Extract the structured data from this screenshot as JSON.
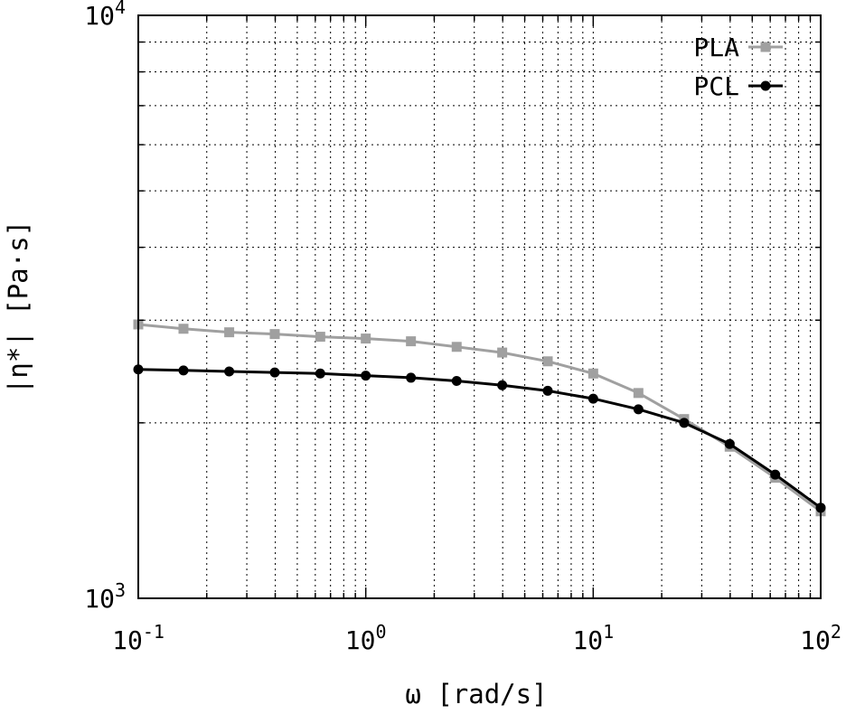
{
  "chart_data": {
    "type": "line",
    "xlabel": "ω [rad/s]",
    "ylabel": "|η*| [Pa·s]",
    "x_scale": "log",
    "y_scale": "log",
    "xlim": [
      0.1,
      100
    ],
    "ylim": [
      1000,
      10000
    ],
    "grid": true,
    "legend_position": "top-right",
    "x_ticks": [
      {
        "base": "10",
        "exp": "-1",
        "value": 0.1
      },
      {
        "base": "10",
        "exp": "0",
        "value": 1
      },
      {
        "base": "10",
        "exp": "1",
        "value": 10
      },
      {
        "base": "10",
        "exp": "2",
        "value": 100
      }
    ],
    "y_ticks": [
      {
        "base": "10",
        "exp": "3",
        "value": 1000
      },
      {
        "base": "10",
        "exp": "4",
        "value": 10000
      }
    ],
    "series": [
      {
        "name": "PLA",
        "color": "#a0a0a0",
        "marker": "square",
        "x": [
          0.1,
          0.158,
          0.251,
          0.398,
          0.631,
          1.0,
          1.58,
          2.51,
          3.98,
          6.31,
          10.0,
          15.8,
          25.1,
          39.8,
          63.1,
          100.0
        ],
        "y": [
          2950,
          2900,
          2860,
          2840,
          2810,
          2790,
          2760,
          2700,
          2640,
          2550,
          2430,
          2250,
          2030,
          1820,
          1610,
          1410
        ]
      },
      {
        "name": "PCL",
        "color": "#000000",
        "marker": "circle",
        "x": [
          0.1,
          0.158,
          0.251,
          0.398,
          0.631,
          1.0,
          1.58,
          2.51,
          3.98,
          6.31,
          10.0,
          15.8,
          25.1,
          39.8,
          63.1,
          100.0
        ],
        "y": [
          2470,
          2460,
          2450,
          2440,
          2430,
          2410,
          2390,
          2360,
          2320,
          2270,
          2200,
          2110,
          2000,
          1840,
          1630,
          1430
        ]
      }
    ]
  }
}
